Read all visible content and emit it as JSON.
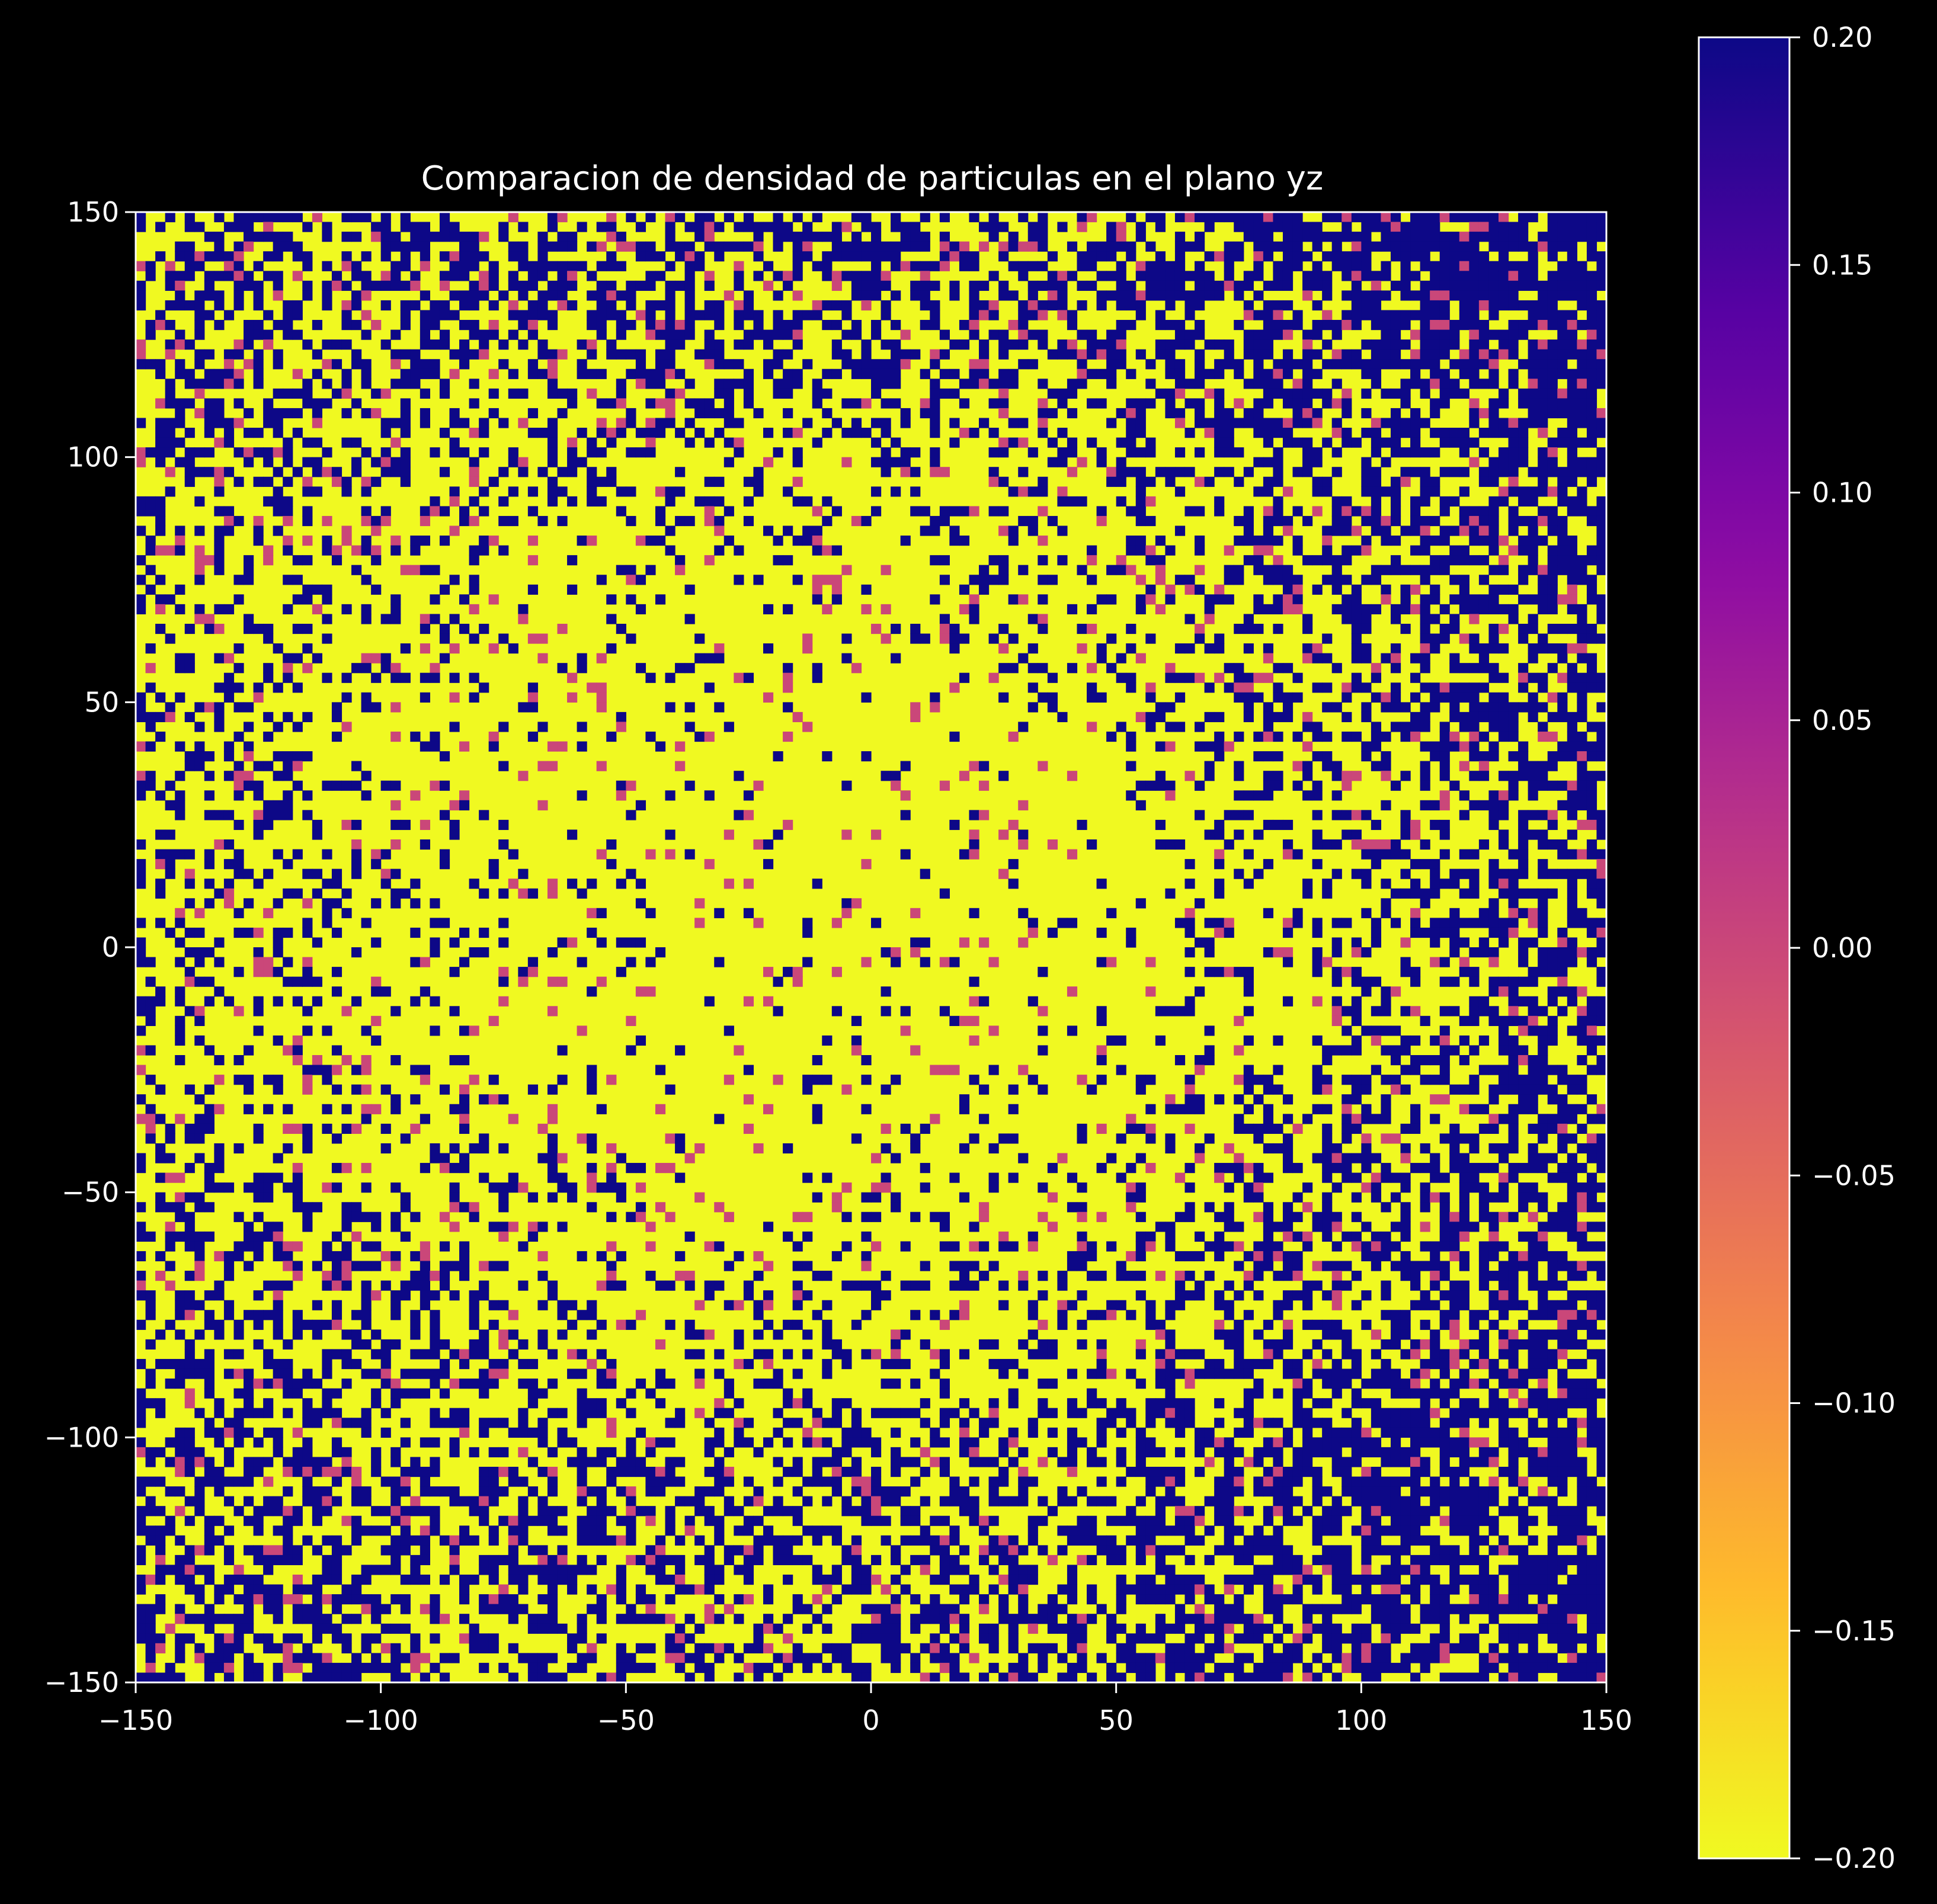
{
  "chart_data": {
    "type": "heatmap",
    "title": "Comparacion de densidad de particulas en el plano yz",
    "xlabel": "",
    "ylabel": "",
    "xlim": [
      -150,
      150
    ],
    "ylim": [
      -150,
      150
    ],
    "x_ticks": [
      -150,
      -100,
      -50,
      0,
      50,
      100,
      150
    ],
    "x_tick_labels": [
      "−150",
      "−100",
      "−50",
      "0",
      "50",
      "100",
      "150"
    ],
    "y_ticks": [
      -150,
      -100,
      -50,
      0,
      50,
      100,
      150
    ],
    "y_tick_labels": [
      "−150",
      "−100",
      "−50",
      "0",
      "50",
      "100",
      "150"
    ],
    "grid": false,
    "colormap": "plasma",
    "colormap_stops": [
      "#0d0887",
      "#5402a3",
      "#8b0aa5",
      "#b93289",
      "#db5c68",
      "#f48849",
      "#febd2a",
      "#f0f921"
    ],
    "background_color": "#000000",
    "text_color": "#ffffff",
    "colorbar": {
      "vmin": -0.2,
      "vmax": 0.2,
      "ticks": [
        -0.2,
        -0.15,
        -0.1,
        -0.05,
        0.0,
        0.05,
        0.1,
        0.15,
        0.2
      ],
      "tick_labels": [
        "−0.20",
        "−0.15",
        "−0.10",
        "−0.05",
        "0.00",
        "0.05",
        "0.10",
        "0.15",
        "0.20"
      ],
      "orientation": "reversed-vertical"
    },
    "grid_resolution": [
      150,
      150
    ],
    "cell_values": [
      -0.2,
      0.0,
      0.2
    ],
    "pattern_description": "Sparse low-density (yellow, -0.2) region centred near y=-20..20, z=0..40; higher-density (blue, +0.2) cells concentrated toward the upper-right and lower-right; scattered 0.0 (magenta) cells throughout"
  }
}
